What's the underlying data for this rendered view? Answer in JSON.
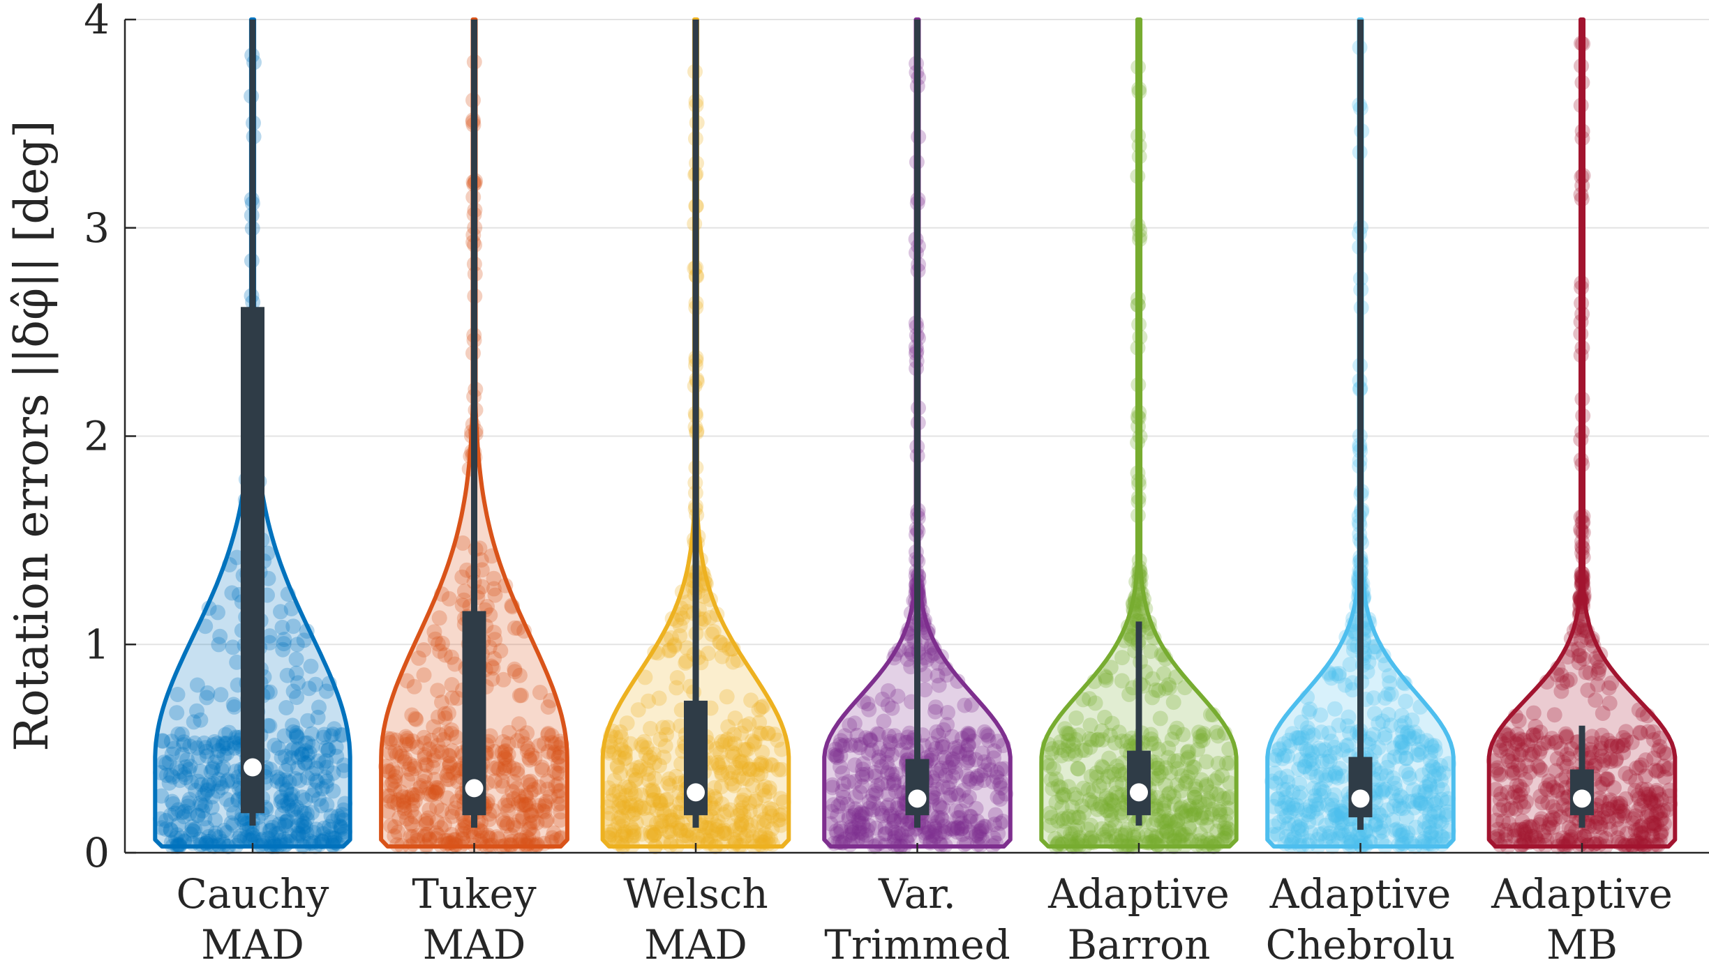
{
  "chart_data": {
    "type": "violin",
    "ylabel": "Rotation errors ||δφ̂|| [deg]",
    "ylim": [
      0,
      4
    ],
    "yticks": [
      "0",
      "1",
      "2",
      "3",
      "4"
    ],
    "grid": "horizontal",
    "categories": [
      {
        "line1": "Cauchy",
        "line2": "MAD"
      },
      {
        "line1": "Tukey",
        "line2": "MAD"
      },
      {
        "line1": "Welsch",
        "line2": "MAD"
      },
      {
        "line1": "Var.",
        "line2": "Trimmed"
      },
      {
        "line1": "Adaptive",
        "line2": "Barron"
      },
      {
        "line1": "Adaptive",
        "line2": "Chebrolu"
      },
      {
        "line1": "Adaptive",
        "line2": "MB"
      }
    ],
    "series": [
      {
        "color": "#0072bd",
        "median": 0.41,
        "q1": 0.19,
        "q3": 2.62,
        "whisker_low": 0.13,
        "whisker_high": 4.0,
        "max_half_width": 0.44
      },
      {
        "color": "#d95319",
        "median": 0.31,
        "q1": 0.18,
        "q3": 1.16,
        "whisker_low": 0.12,
        "whisker_high": 4.0,
        "max_half_width": 0.42
      },
      {
        "color": "#edb120",
        "median": 0.29,
        "q1": 0.18,
        "q3": 0.73,
        "whisker_low": 0.12,
        "whisker_high": 4.0,
        "max_half_width": 0.42
      },
      {
        "color": "#7e2f8e",
        "median": 0.26,
        "q1": 0.18,
        "q3": 0.45,
        "whisker_low": 0.12,
        "whisker_high": 4.0,
        "max_half_width": 0.42
      },
      {
        "color": "#77ac30",
        "median": 0.29,
        "q1": 0.18,
        "q3": 0.49,
        "whisker_low": 0.13,
        "whisker_high": 1.11,
        "max_half_width": 0.44
      },
      {
        "color": "#4dbeee",
        "median": 0.26,
        "q1": 0.17,
        "q3": 0.46,
        "whisker_low": 0.11,
        "whisker_high": 4.0,
        "max_half_width": 0.42
      },
      {
        "color": "#a2142f",
        "median": 0.26,
        "q1": 0.18,
        "q3": 0.4,
        "whisker_low": 0.12,
        "whisker_high": 0.61,
        "max_half_width": 0.42
      }
    ]
  }
}
